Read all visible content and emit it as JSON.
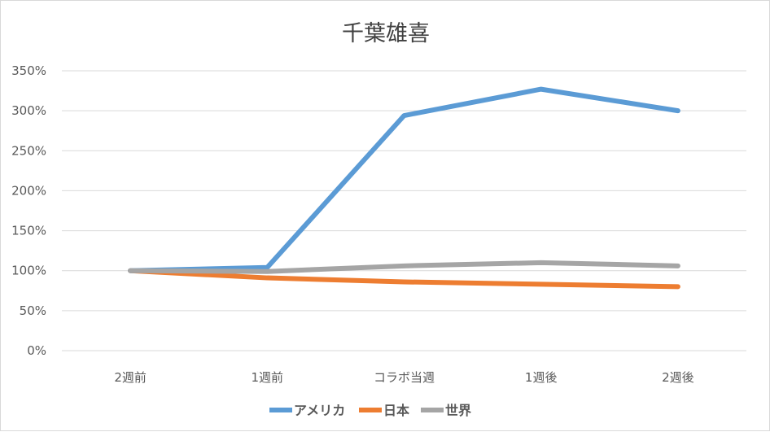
{
  "chart_data": {
    "type": "line",
    "title": "千葉雄喜",
    "categories": [
      "2週前",
      "1週前",
      "コラボ当週",
      "1週後",
      "2週後"
    ],
    "yticks": [
      "0%",
      "50%",
      "100%",
      "150%",
      "200%",
      "250%",
      "300%",
      "350%"
    ],
    "ylim": [
      0,
      350
    ],
    "grid": true,
    "legend_position": "bottom",
    "series": [
      {
        "name": "アメリカ",
        "color": "#5b9bd5",
        "values": [
          100,
          104,
          294,
          327,
          300
        ]
      },
      {
        "name": "日本",
        "color": "#ed7d31",
        "values": [
          100,
          91,
          86,
          83,
          80
        ]
      },
      {
        "name": "世界",
        "color": "#a5a5a5",
        "values": [
          100,
          99,
          106,
          110,
          106
        ]
      }
    ]
  }
}
